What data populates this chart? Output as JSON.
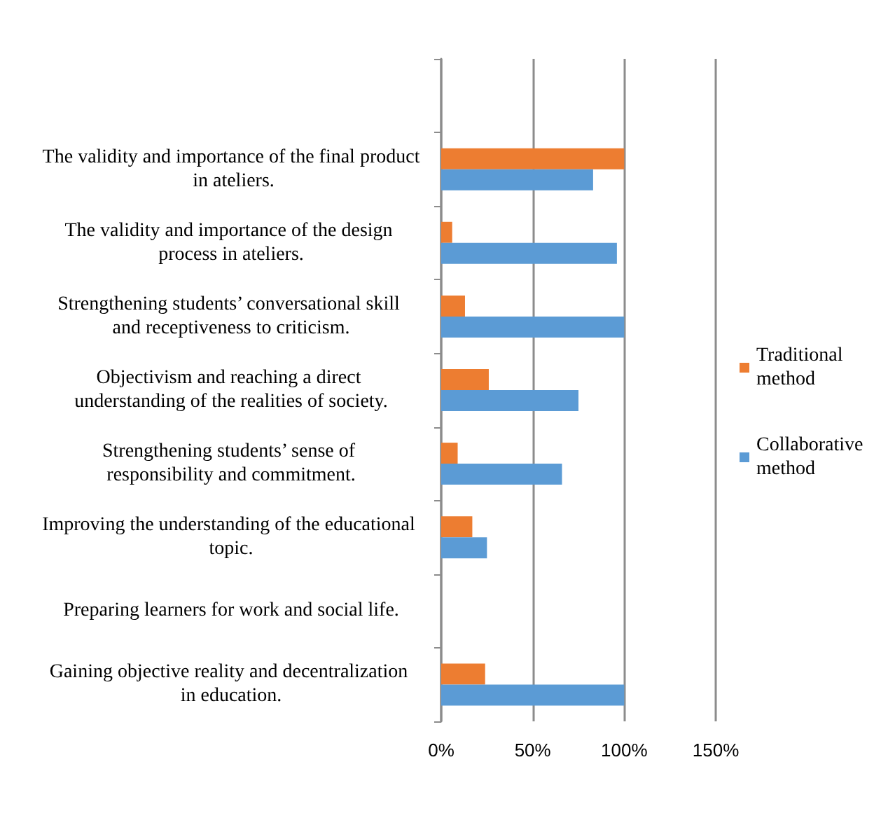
{
  "chart_data": {
    "type": "bar",
    "orientation": "horizontal",
    "categories": [
      null,
      "The validity and importance of the final product in ateliers.",
      "The validity and importance of the design process in ateliers.",
      "Strengthening students’ conversational skill and receptiveness to criticism.",
      "Objectivism and reaching a direct understanding of the realities of society.",
      "Strengthening students’ sense of responsibility and commitment.",
      "Improving the understanding of the educational topic.",
      "Preparing learners for work and social life.",
      "Gaining objective reality and decentralization in education."
    ],
    "series": [
      {
        "name": "Traditional method",
        "color": "#ed7d31",
        "values": [
          null,
          100,
          6,
          13,
          26,
          9,
          17,
          null,
          24
        ]
      },
      {
        "name": "Collaborative method",
        "color": "#5b9bd5",
        "values": [
          null,
          83,
          96,
          100,
          75,
          66,
          25,
          null,
          100
        ]
      }
    ],
    "xlim": [
      0,
      150
    ],
    "xticks": [
      {
        "value": 0,
        "label": "0%"
      },
      {
        "value": 50,
        "label": "50%"
      },
      {
        "value": 100,
        "label": "100%"
      },
      {
        "value": 150,
        "label": "150%"
      }
    ],
    "grid": "x",
    "legend": "right"
  }
}
